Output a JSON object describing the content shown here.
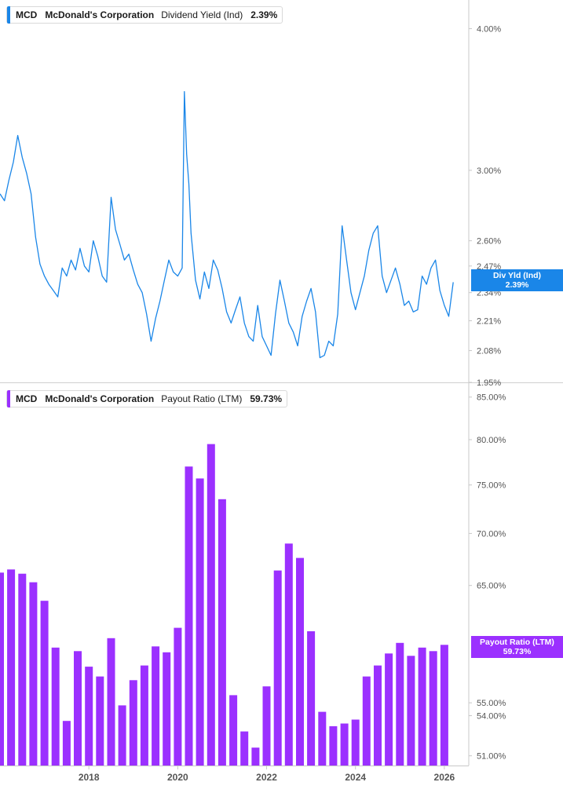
{
  "colors": {
    "line": "#1a86e8",
    "bar": "#9b30ff",
    "axis": "#c8c8c8",
    "tick_text": "#555555",
    "divider": "#cfcfcf"
  },
  "top_panel": {
    "ticker": "MCD",
    "company": "McDonald's Corporation",
    "metric": "Dividend Yield (Ind)",
    "value": "2.39%",
    "flag_label": "Div Yld (Ind)",
    "flag_value": "2.39%"
  },
  "bottom_panel": {
    "ticker": "MCD",
    "company": "McDonald's Corporation",
    "metric": "Payout Ratio (LTM)",
    "value": "59.73%",
    "flag_label": "Payout Ratio (LTM)",
    "flag_value": "59.73%"
  },
  "chart_data": [
    {
      "type": "line",
      "title": "Dividend Yield (Ind)",
      "series": [
        {
          "name": "Dividend Yield (Ind)",
          "x": [
            2016.0,
            2016.1,
            2016.2,
            2016.3,
            2016.4,
            2016.5,
            2016.6,
            2016.7,
            2016.8,
            2016.9,
            2017.0,
            2017.1,
            2017.2,
            2017.3,
            2017.4,
            2017.5,
            2017.6,
            2017.7,
            2017.8,
            2017.9,
            2018.0,
            2018.1,
            2018.2,
            2018.3,
            2018.4,
            2018.5,
            2018.6,
            2018.7,
            2018.8,
            2018.9,
            2019.0,
            2019.1,
            2019.2,
            2019.3,
            2019.4,
            2019.5,
            2019.6,
            2019.7,
            2019.8,
            2019.9,
            2020.0,
            2020.1,
            2020.15,
            2020.2,
            2020.25,
            2020.3,
            2020.4,
            2020.5,
            2020.6,
            2020.7,
            2020.8,
            2020.9,
            2021.0,
            2021.1,
            2021.2,
            2021.3,
            2021.4,
            2021.5,
            2021.6,
            2021.7,
            2021.8,
            2021.9,
            2022.0,
            2022.1,
            2022.2,
            2022.3,
            2022.4,
            2022.5,
            2022.6,
            2022.7,
            2022.8,
            2022.9,
            2023.0,
            2023.1,
            2023.2,
            2023.3,
            2023.4,
            2023.5,
            2023.6,
            2023.7,
            2023.8,
            2023.9,
            2024.0,
            2024.1,
            2024.2,
            2024.3,
            2024.4,
            2024.5,
            2024.6,
            2024.7,
            2024.8,
            2024.9,
            2025.0,
            2025.1,
            2025.2,
            2025.3,
            2025.4,
            2025.5,
            2025.6,
            2025.7,
            2025.8,
            2025.9,
            2026.0,
            2026.1,
            2026.2
          ],
          "values": [
            2.86,
            2.82,
            2.94,
            3.05,
            3.22,
            3.08,
            2.98,
            2.86,
            2.62,
            2.48,
            2.42,
            2.38,
            2.35,
            2.32,
            2.46,
            2.42,
            2.5,
            2.45,
            2.56,
            2.47,
            2.44,
            2.6,
            2.52,
            2.42,
            2.39,
            2.84,
            2.66,
            2.58,
            2.5,
            2.53,
            2.45,
            2.38,
            2.34,
            2.24,
            2.12,
            2.22,
            2.3,
            2.4,
            2.5,
            2.44,
            2.42,
            2.46,
            3.52,
            3.1,
            2.92,
            2.64,
            2.4,
            2.31,
            2.44,
            2.36,
            2.5,
            2.45,
            2.36,
            2.25,
            2.2,
            2.26,
            2.32,
            2.2,
            2.14,
            2.12,
            2.28,
            2.14,
            2.1,
            2.06,
            2.24,
            2.4,
            2.3,
            2.2,
            2.16,
            2.1,
            2.23,
            2.3,
            2.36,
            2.25,
            2.05,
            2.06,
            2.12,
            2.1,
            2.24,
            2.68,
            2.5,
            2.34,
            2.26,
            2.34,
            2.42,
            2.55,
            2.64,
            2.68,
            2.42,
            2.34,
            2.4,
            2.46,
            2.38,
            2.28,
            2.3,
            2.25,
            2.26,
            2.42,
            2.38,
            2.46,
            2.5,
            2.35,
            2.28,
            2.23,
            2.39
          ]
        }
      ],
      "ylim": [
        1.95,
        4.24
      ],
      "xlim": [
        2016.0,
        2026.55
      ],
      "y_scale": "log",
      "y_ticks": [
        "4.00%",
        "3.00%",
        "2.60%",
        "2.47%",
        "2.34%",
        "2.21%",
        "2.08%",
        "1.95%"
      ],
      "y_tick_values": [
        4.0,
        3.0,
        2.6,
        2.47,
        2.34,
        2.21,
        2.08,
        1.95
      ],
      "x_ticks": [
        "2018",
        "2020",
        "2022",
        "2024",
        "2026"
      ],
      "x_tick_values": [
        2018,
        2020,
        2022,
        2024,
        2026
      ],
      "grid": false,
      "legend": "top-left"
    },
    {
      "type": "bar",
      "title": "Payout Ratio (LTM)",
      "series": [
        {
          "name": "Payout Ratio (LTM)",
          "x": [
            2016.0,
            2016.25,
            2016.5,
            2016.75,
            2017.0,
            2017.25,
            2017.5,
            2017.75,
            2018.0,
            2018.25,
            2018.5,
            2018.75,
            2019.0,
            2019.25,
            2019.5,
            2019.75,
            2020.0,
            2020.25,
            2020.5,
            2020.75,
            2021.0,
            2021.25,
            2021.5,
            2021.75,
            2022.0,
            2022.25,
            2022.5,
            2022.75,
            2023.0,
            2023.25,
            2023.5,
            2023.75,
            2024.0,
            2024.25,
            2024.5,
            2024.75,
            2025.0,
            2025.25,
            2025.5,
            2025.75,
            2026.0
          ],
          "values": [
            66.2,
            66.5,
            66.1,
            65.3,
            63.6,
            59.5,
            53.6,
            59.2,
            57.9,
            57.1,
            60.3,
            54.8,
            56.8,
            58.0,
            59.6,
            59.1,
            61.2,
            77.0,
            75.7,
            79.5,
            73.5,
            55.6,
            52.8,
            51.6,
            56.3,
            66.4,
            69.0,
            67.6,
            60.9,
            54.3,
            53.2,
            53.4,
            53.7,
            57.1,
            58.0,
            59.0,
            59.9,
            58.8,
            59.5,
            59.2,
            59.73
          ]
        }
      ],
      "ylim": [
        50.3,
        86.8
      ],
      "xlim": [
        2016.0,
        2026.55
      ],
      "y_scale": "log",
      "y_ticks": [
        "85.00%",
        "80.00%",
        "75.00%",
        "70.00%",
        "65.00%",
        "55.00%",
        "54.00%",
        "51.00%"
      ],
      "y_tick_values": [
        85.0,
        80.0,
        75.0,
        70.0,
        65.0,
        55.0,
        54.0,
        51.0
      ],
      "x_ticks": [
        "2018",
        "2020",
        "2022",
        "2024",
        "2026"
      ],
      "x_tick_values": [
        2018,
        2020,
        2022,
        2024,
        2026
      ],
      "grid": false,
      "legend": "top-left"
    }
  ]
}
